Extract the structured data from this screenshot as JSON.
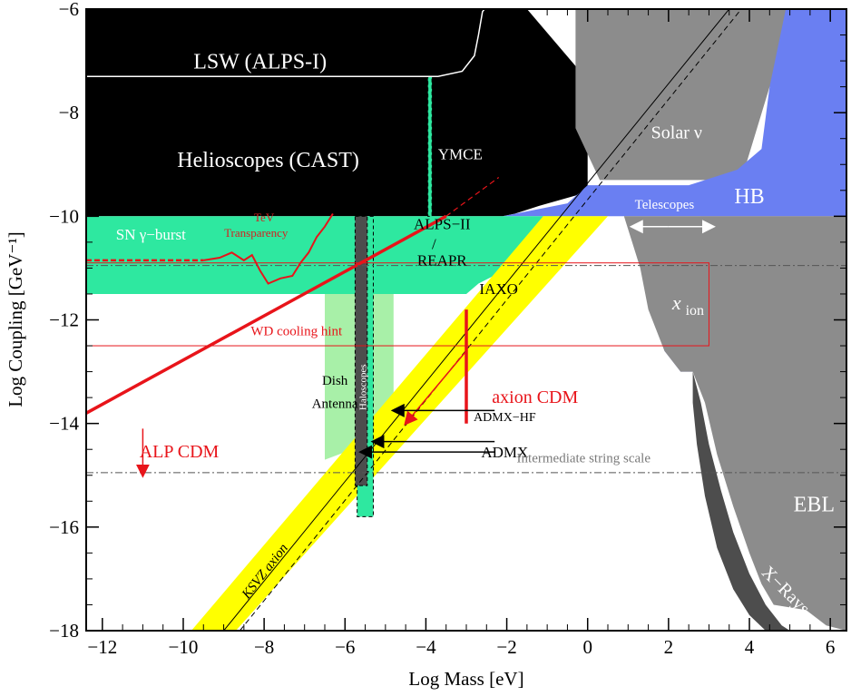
{
  "chart_data": {
    "type": "area",
    "xlabel": "Log Mass [eV]",
    "ylabel": "Log Coupling [GeV⁻¹]",
    "xlim": [
      -12.4,
      6.4
    ],
    "ylim": [
      -18,
      -6
    ],
    "x_ticks": [
      -12,
      -10,
      -8,
      -6,
      -4,
      -2,
      0,
      2,
      4,
      6
    ],
    "y_ticks": [
      -18,
      -16,
      -14,
      -12,
      -10,
      -8,
      -6
    ],
    "x_tick_labels": [
      "−12",
      "−10",
      "−8",
      "−6",
      "−4",
      "−2",
      "0",
      "2",
      "4",
      "6"
    ],
    "y_tick_labels": [
      "−18",
      "−16",
      "−14",
      "−12",
      "−10",
      "−8",
      "−6"
    ],
    "colors": {
      "black": "#000000",
      "gray": "#8c8c8c",
      "darkgray": "#4d4d4d",
      "lightblue": "#9b9bf6",
      "blue": "#6a7ff2",
      "green": "#2ee8a0",
      "lightgreen": "#a8f0a8",
      "yellow": "#ffff00",
      "red": "#e8141a"
    },
    "regions": [
      {
        "name": "Helioscopes (CAST)",
        "color": "black",
        "points": [
          [
            -12.4,
            -6
          ],
          [
            -1.5,
            -6
          ],
          [
            -0.3,
            -7.1
          ],
          [
            0,
            -8.3
          ],
          [
            0,
            -9.5
          ],
          [
            -0.3,
            -9.6
          ],
          [
            -1.2,
            -9.8
          ],
          [
            -1.8,
            -9.95
          ],
          [
            -2.1,
            -10
          ],
          [
            -12.4,
            -10
          ]
        ]
      },
      {
        "name": "Solar nu",
        "color": "gray",
        "points": [
          [
            -0.3,
            -6
          ],
          [
            6.4,
            -6
          ],
          [
            6.4,
            -7.2
          ],
          [
            4.5,
            -7.5
          ],
          [
            3.8,
            -9.3
          ],
          [
            2,
            -9.3
          ],
          [
            0.3,
            -9.3
          ],
          [
            -0.3,
            -8.3
          ]
        ]
      },
      {
        "name": "HB",
        "color": "blue",
        "points": [
          [
            -2.1,
            -10
          ],
          [
            -0.5,
            -9.75
          ],
          [
            0,
            -9.4
          ],
          [
            2.5,
            -9.4
          ],
          [
            3.7,
            -9.1
          ],
          [
            4.3,
            -8.7
          ],
          [
            4.5,
            -7.5
          ],
          [
            4.9,
            -6
          ],
          [
            6.4,
            -6
          ],
          [
            6.4,
            -10
          ],
          [
            2.6,
            -10
          ],
          [
            2,
            -10
          ],
          [
            -2.1,
            -10
          ]
        ]
      },
      {
        "name": "x_ion",
        "color": "lightblue",
        "points": [
          [
            1.4,
            -10.4
          ],
          [
            2.4,
            -10.2
          ],
          [
            2.8,
            -10
          ],
          [
            6.4,
            -10
          ],
          [
            6.4,
            -12.6
          ],
          [
            5.5,
            -12.6
          ],
          [
            4.6,
            -12.6
          ],
          [
            3.6,
            -12.6
          ],
          [
            2.9,
            -12.8
          ],
          [
            2.6,
            -13
          ],
          [
            2.3,
            -13
          ],
          [
            1.9,
            -12.6
          ],
          [
            1.6,
            -11.8
          ],
          [
            1.4,
            -11
          ]
        ]
      },
      {
        "name": "EBL",
        "color": "gray",
        "points": [
          [
            0.9,
            -10
          ],
          [
            1.1,
            -10.5
          ],
          [
            1.3,
            -11
          ],
          [
            1.5,
            -11.8
          ],
          [
            1.9,
            -12.6
          ],
          [
            2.3,
            -13
          ],
          [
            2.6,
            -13
          ],
          [
            2.9,
            -13.6
          ],
          [
            3.2,
            -14.6
          ],
          [
            3.6,
            -15.6
          ],
          [
            4,
            -16.5
          ],
          [
            4.3,
            -17.1
          ],
          [
            4.6,
            -17.5
          ],
          [
            5.4,
            -17.6
          ],
          [
            5.9,
            -17.9
          ],
          [
            6.4,
            -18
          ],
          [
            6.4,
            -10
          ],
          [
            2.8,
            -10
          ]
        ]
      },
      {
        "name": "X-Rays",
        "color": "darkgray",
        "points": [
          [
            2.6,
            -13
          ],
          [
            2.8,
            -13.6
          ],
          [
            3,
            -14.4
          ],
          [
            3.3,
            -15.3
          ],
          [
            3.6,
            -16.1
          ],
          [
            4,
            -16.9
          ],
          [
            4.4,
            -17.5
          ],
          [
            4.8,
            -17.9
          ],
          [
            5,
            -18
          ],
          [
            4.4,
            -18
          ],
          [
            4,
            -17.7
          ],
          [
            3.6,
            -17.2
          ],
          [
            3.2,
            -16.4
          ],
          [
            2.9,
            -15.4
          ],
          [
            2.7,
            -14.4
          ],
          [
            2.6,
            -13.6
          ]
        ]
      },
      {
        "name": "SN gamma-burst",
        "color": "gray",
        "points": [
          [
            -12.4,
            -10
          ],
          [
            -9.4,
            -10
          ],
          [
            -9.4,
            -11
          ],
          [
            -12.4,
            -11
          ]
        ]
      },
      {
        "name": "ALPS-II / REAPR / IAXO",
        "color": "green",
        "points": [
          [
            -12.4,
            -10
          ],
          [
            -0.2,
            -10
          ],
          [
            -0.6,
            -10.5
          ],
          [
            -0.6,
            -10.95
          ],
          [
            -1.2,
            -11.05
          ],
          [
            -2.2,
            -11.1
          ],
          [
            -2.7,
            -11.3
          ],
          [
            -3,
            -11.5
          ],
          [
            -12.4,
            -11.5
          ]
        ]
      },
      {
        "name": "Dish Antenna",
        "color": "lightgreen",
        "points": [
          [
            -6.5,
            -11.5
          ],
          [
            -4.8,
            -11.5
          ],
          [
            -4.8,
            -14.2
          ],
          [
            -6.5,
            -14.7
          ]
        ]
      },
      {
        "name": "KSVZ axion band",
        "color": "yellow",
        "points": [
          [
            -9.8,
            -18
          ],
          [
            -8.7,
            -18
          ],
          [
            0.5,
            -10
          ],
          [
            -1.1,
            -10
          ]
        ]
      }
    ],
    "haloscope_bands": [
      {
        "name": "Haloscopes",
        "color": "green",
        "x0": -5.7,
        "x1": -5.3,
        "y0": -15.8,
        "y1": -10
      },
      {
        "name": "Haloscopes (dark)",
        "color": "darkgray",
        "x0": -5.75,
        "x1": -5.45,
        "y0": -15.2,
        "y1": -10
      },
      {
        "name": "YMCE",
        "color": "green",
        "x0": -3.95,
        "x1": -3.85,
        "y0": -10,
        "y1": -7.3
      }
    ],
    "lines": [
      {
        "name": "LSW (ALPS-I)",
        "color": "#ffffff",
        "points": [
          [
            -12.4,
            -7.3
          ],
          [
            -3.7,
            -7.3
          ],
          [
            -3.1,
            -7.2
          ],
          [
            -2.8,
            -6.9
          ],
          [
            -2.7,
            -6.5
          ],
          [
            -2.6,
            -6.05
          ],
          [
            -2.5,
            -5.95
          ]
        ],
        "width": 1.5
      },
      {
        "name": "KSVZ axion line",
        "color": "#000000",
        "points": [
          [
            -9,
            -18
          ],
          [
            3.5,
            -6
          ]
        ],
        "width": 1
      },
      {
        "name": "axion model dashed",
        "color": "#000000",
        "dash": "6,4",
        "points": [
          [
            -8.6,
            -18
          ],
          [
            3.8,
            -6
          ]
        ],
        "width": 1
      },
      {
        "name": "ALP CDM",
        "color": "red",
        "points": [
          [
            -12.4,
            -13.8
          ],
          [
            -3.5,
            -10
          ]
        ],
        "width": 3.5
      },
      {
        "name": "ALP CDM dashed",
        "color": "red",
        "dash": "6,4",
        "points": [
          [
            -3.5,
            -10
          ],
          [
            -2.2,
            -9.25
          ]
        ],
        "width": 1.2
      },
      {
        "name": "SN dashed",
        "color": "red",
        "dash": "6,3",
        "points": [
          [
            -12.4,
            -10.85
          ],
          [
            -9.5,
            -10.85
          ]
        ],
        "width": 2.5
      },
      {
        "name": "TeV Transparency",
        "color": "red",
        "points": [
          [
            -9.5,
            -10.85
          ],
          [
            -9.1,
            -10.8
          ],
          [
            -8.8,
            -10.7
          ],
          [
            -8.5,
            -10.85
          ],
          [
            -8.3,
            -10.75
          ],
          [
            -8.1,
            -11.05
          ],
          [
            -7.9,
            -11.3
          ],
          [
            -7.6,
            -11.2
          ],
          [
            -7.3,
            -11.15
          ],
          [
            -7.1,
            -10.9
          ],
          [
            -6.9,
            -10.7
          ],
          [
            -6.7,
            -10.4
          ],
          [
            -6.5,
            -10.2
          ],
          [
            -6.3,
            -9.95
          ]
        ],
        "width": 2
      },
      {
        "name": "axion CDM",
        "color": "red",
        "points": [
          [
            -3,
            -11.8
          ],
          [
            -3,
            -14
          ]
        ],
        "width": 3.5
      },
      {
        "name": "intermediate string",
        "color": "#555555",
        "dash": "8,3,2,3",
        "points": [
          [
            -12.4,
            -14.95
          ],
          [
            6.4,
            -14.95
          ]
        ],
        "width": 1
      },
      {
        "name": "upper string line",
        "color": "#555555",
        "dash": "8,3,2,3",
        "points": [
          [
            -12.4,
            -10.95
          ],
          [
            6.4,
            -10.95
          ]
        ],
        "width": 1
      },
      {
        "name": "WD box",
        "color": "red",
        "rect": [
          -12.4,
          -12.5,
          3,
          -10.9
        ],
        "width": 1
      }
    ],
    "annotations": [
      {
        "text": "LSW (ALPS-I)",
        "x": -8.1,
        "y": -7.15,
        "color": "#ffffff",
        "size": 24
      },
      {
        "text": "Helioscopes (CAST)",
        "x": -7.9,
        "y": -9.05,
        "color": "#ffffff",
        "size": 24
      },
      {
        "text": "YMCE",
        "x": -3.15,
        "y": -8.9,
        "color": "#ffffff",
        "size": 17
      },
      {
        "text": "Solar ν",
        "x": 2.2,
        "y": -8.5,
        "color": "#ffffff",
        "size": 20
      },
      {
        "text": "HB",
        "x": 4,
        "y": -9.75,
        "color": "#ffffff",
        "size": 24
      },
      {
        "text": "Telescopes",
        "x": 1.9,
        "y": -9.85,
        "color": "#ffffff",
        "size": 15
      },
      {
        "text": "SN γ−burst",
        "x": -10.8,
        "y": -10.45,
        "color": "#ffffff",
        "size": 17
      },
      {
        "text": "TeV",
        "x": -8.0,
        "y": -10.1,
        "color": "#d42020",
        "size": 13
      },
      {
        "text": "Transparency",
        "x": -8.2,
        "y": -10.4,
        "color": "#d42020",
        "size": 13
      },
      {
        "text": "ALPS−II",
        "x": -3.6,
        "y": -10.25,
        "color": "#000000",
        "size": 17
      },
      {
        "text": "/",
        "x": -3.8,
        "y": -10.63,
        "color": "#000000",
        "size": 17
      },
      {
        "text": "REAPR",
        "x": -3.6,
        "y": -10.95,
        "color": "#000000",
        "size": 17
      },
      {
        "text": "IAXO",
        "x": -2.2,
        "y": -11.5,
        "color": "#000000",
        "size": 17
      },
      {
        "text": "WD cooling hint",
        "x": -7.2,
        "y": -12.3,
        "color": "#e8141a",
        "size": 15
      },
      {
        "text": "axion CDM",
        "x": -1.3,
        "y": -13.6,
        "color": "#e8141a",
        "size": 20
      },
      {
        "text": "ALP CDM",
        "x": -10.1,
        "y": -14.65,
        "color": "#e8141a",
        "size": 20
      },
      {
        "text": "Dish",
        "x": -6.25,
        "y": -13.25,
        "color": "#000000",
        "size": 15
      },
      {
        "text": "Antenna",
        "x": -6.25,
        "y": -13.7,
        "color": "#000000",
        "size": 15
      },
      {
        "text": "ADMX−HF",
        "x": -2.05,
        "y": -13.95,
        "color": "#000000",
        "size": 14
      },
      {
        "text": "ADMX",
        "x": -2.05,
        "y": -14.65,
        "color": "#000000",
        "size": 17
      },
      {
        "text": "Intermediate string scale",
        "x": -0.1,
        "y": -14.75,
        "color": "#7a7a7a",
        "size": 15
      },
      {
        "text": "EBL",
        "x": 5.6,
        "y": -15.7,
        "color": "#ffffff",
        "size": 24
      },
      {
        "text": "x",
        "x": 2.2,
        "y": -11.8,
        "color": "#ffffff",
        "size": 22,
        "italic": true
      },
      {
        "text": "ion",
        "x": 2.65,
        "y": -11.9,
        "color": "#ffffff",
        "size": 16
      },
      {
        "text": "KSVZ axion",
        "x": -7.9,
        "y": -16.9,
        "color": "#000000",
        "size": 15,
        "italic": true,
        "rotate": -52
      },
      {
        "text": "X−Rays",
        "x": 4.8,
        "y": -17.3,
        "color": "#ffffff",
        "size": 20,
        "rotate": 45
      },
      {
        "text": "Haloscopes",
        "x": -5.48,
        "y": -13.3,
        "color": "#ffffff",
        "size": 11,
        "rotate": -90
      }
    ],
    "arrows": [
      {
        "name": "ALP CDM arrow",
        "color": "#e8141a",
        "from": [
          -11,
          -14.1
        ],
        "to": [
          -11,
          -15
        ]
      },
      {
        "name": "axion CDM arrow",
        "color": "#e8141a",
        "from": [
          -3,
          -12.6
        ],
        "to": [
          -4.5,
          -14
        ]
      },
      {
        "name": "ADMX-HF arrow",
        "color": "#000000",
        "from": [
          -2.3,
          -13.75
        ],
        "to": [
          -4.8,
          -13.75
        ]
      },
      {
        "name": "ADMX arrow",
        "color": "#000000",
        "from": [
          -2.3,
          -14.35
        ],
        "to": [
          -5.3,
          -14.35
        ]
      },
      {
        "name": "ADMX arrow 2",
        "color": "#000000",
        "from": [
          -2.3,
          -14.55
        ],
        "to": [
          -5.6,
          -14.55
        ]
      },
      {
        "name": "Telescopes arrow left",
        "color": "#ffffff",
        "from": [
          2.0,
          -10.2
        ],
        "to": [
          1.1,
          -10.2
        ]
      },
      {
        "name": "Telescopes arrow right",
        "color": "#ffffff",
        "from": [
          2.0,
          -10.2
        ],
        "to": [
          3.1,
          -10.2
        ]
      }
    ]
  }
}
